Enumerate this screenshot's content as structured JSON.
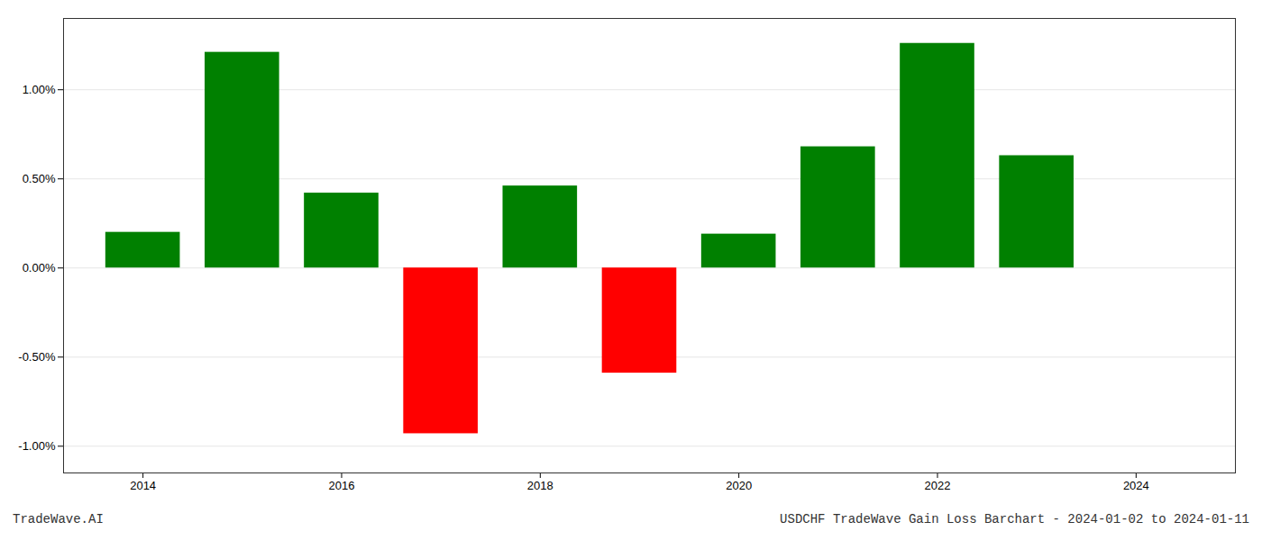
{
  "chart_data": {
    "type": "bar",
    "x": [
      2014,
      2015,
      2016,
      2017,
      2018,
      2019,
      2020,
      2021,
      2022,
      2023
    ],
    "values": [
      0.002,
      0.0121,
      0.0042,
      -0.0093,
      0.0046,
      -0.0059,
      0.0019,
      0.0068,
      0.0126,
      0.0063
    ],
    "colors": [
      "#008000",
      "#008000",
      "#008000",
      "#ff0000",
      "#008000",
      "#ff0000",
      "#008000",
      "#008000",
      "#008000",
      "#008000"
    ],
    "xlim": [
      2013.2,
      2025.0
    ],
    "xticks": [
      2014,
      2016,
      2018,
      2020,
      2022,
      2024
    ],
    "ylim": [
      -0.0115,
      0.014
    ],
    "yticks": [
      {
        "value": -0.01,
        "label": "-1.00%"
      },
      {
        "value": -0.005,
        "label": "-0.50%"
      },
      {
        "value": 0.0,
        "label": "0.00%"
      },
      {
        "value": 0.005,
        "label": "0.50%"
      },
      {
        "value": 0.01,
        "label": "1.00%"
      }
    ],
    "grid": true,
    "annotations": [
      "TradeWave.AI",
      "USDCHF TradeWave Gain Loss Barchart - 2024-01-02 to 2024-01-11"
    ]
  }
}
